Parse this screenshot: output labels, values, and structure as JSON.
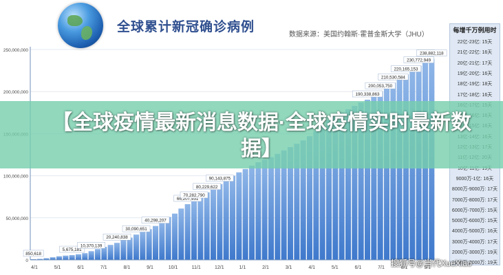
{
  "banner": {
    "text": "【全球疫情最新消息数据·全球疫情实时最新数据】"
  },
  "header": {
    "globe_icon": "globe-icon"
  },
  "watermark": "搜狐号@当代XueXiao",
  "side_panel": {
    "title": "每增千万例用时",
    "rows": [
      "22亿-23亿: 15天",
      "21亿-22亿: 16天",
      "20亿-21亿: 17天",
      "19亿-20亿: 16天",
      "18亿-19亿: 18天",
      "17亿-18亿: 16天",
      "16亿-17亿: 15天",
      "15亿-16亿: 16天",
      "14亿-15亿: 16天",
      "13亿-14亿: 16天",
      "12亿-13亿: 17天",
      "11亿-12亿: 20天",
      "10亿-11亿: 19天",
      "9000万-1亿: 16天",
      "8000万-9000万: 17天",
      "7000万-8000万: 17天",
      "6000万-7000万: 15天",
      "5000万-6000万: 15天",
      "4000万-5000万: 16天",
      "3000万-4000万: 17天",
      "2000万-3000万: 19天",
      "1000万-2000万: 19天"
    ]
  },
  "chart_data": {
    "type": "bar",
    "title": "全球累计新冠确诊病例",
    "source": "数据来源：美国约翰斯·霍普金斯大学（JHU）",
    "x_tick_labels": [
      "4/1",
      "5/1",
      "6/1",
      "7/1",
      "8/1",
      "9/1",
      "10/1",
      "11/1",
      "12/1",
      "1/1",
      "2/1",
      "3/1",
      "4/1",
      "5/1",
      "6/1",
      "7/1",
      "8/1",
      "9/1"
    ],
    "y_tick_labels": [
      "0",
      "50,000,000",
      "100,000,000",
      "150,000,000",
      "200,000,000",
      "250,000,000"
    ],
    "ylim": [
      0,
      250000000
    ],
    "grid": true,
    "colors": {
      "bar": "#3f79cc",
      "bar_light": "#8fb6e8",
      "axis": "#6f8fb8"
    },
    "values": [
      850618,
      1200000,
      2000000,
      3100000,
      4300000,
      5100000,
      5675181,
      6700000,
      8000000,
      10370139,
      12800000,
      15500000,
      17800000,
      20240838,
      23500000,
      26500000,
      30090651,
      33000000,
      36500000,
      40298207,
      45000000,
      51000000,
      55000000,
      61000000,
      66207931,
      70282790,
      75000000,
      80229622,
      85000000,
      90143875,
      95000000,
      100000000,
      104000000,
      108000000,
      112000000,
      116000000,
      119000000,
      122000000,
      126000000,
      130000000,
      134000000,
      138000000,
      142000000,
      147000000,
      153000000,
      160000000,
      166000000,
      171000000,
      175000000,
      179000000,
      183000000,
      187000000,
      190338863,
      196000000,
      200053750,
      205000000,
      210530584,
      215000000,
      220165153,
      224000000,
      230772949,
      235000000,
      238882118
    ],
    "labeled_points": [
      {
        "index": 0,
        "text": "850,618"
      },
      {
        "index": 6,
        "text": "5,675,181"
      },
      {
        "index": 9,
        "text": "10,370,139"
      },
      {
        "index": 13,
        "text": "20,240,838"
      },
      {
        "index": 16,
        "text": "30,090,651"
      },
      {
        "index": 19,
        "text": "40,298,207"
      },
      {
        "index": 24,
        "text": "66,207,931"
      },
      {
        "index": 25,
        "text": "70,282,790"
      },
      {
        "index": 27,
        "text": "80,229,622"
      },
      {
        "index": 29,
        "text": "90,143,875"
      },
      {
        "index": 52,
        "text": "190,338,863"
      },
      {
        "index": 54,
        "text": "200,053,750"
      },
      {
        "index": 56,
        "text": "210,530,584"
      },
      {
        "index": 58,
        "text": "220,165,153"
      },
      {
        "index": 60,
        "text": "230,772,949"
      },
      {
        "index": 62,
        "text": "238,882,118"
      }
    ]
  }
}
